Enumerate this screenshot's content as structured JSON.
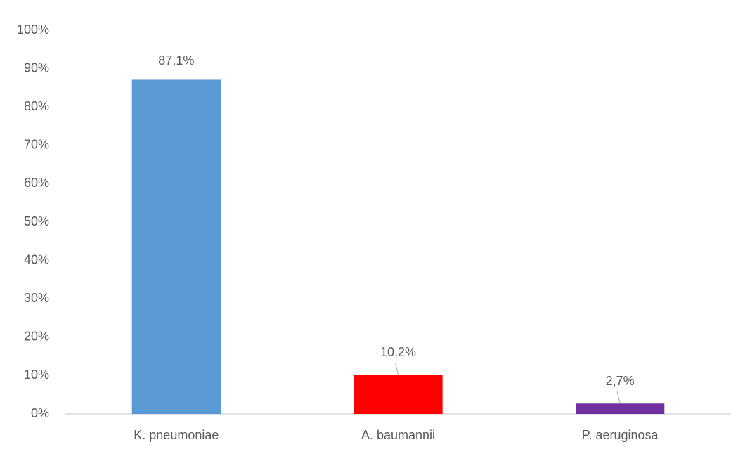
{
  "chart_data": {
    "type": "bar",
    "categories": [
      "K. pneumoniae",
      "A. baumannii",
      "P. aeruginosa"
    ],
    "values": [
      87.1,
      10.2,
      2.7
    ],
    "value_labels": [
      "87,1%",
      "10,2%",
      "2,7%"
    ],
    "colors": [
      "#5b9bd5",
      "#ff0000",
      "#7030a0"
    ],
    "ylim": [
      0,
      100
    ],
    "yticks": [
      {
        "value": 0,
        "label": "0%"
      },
      {
        "value": 10,
        "label": "10%"
      },
      {
        "value": 20,
        "label": "20%"
      },
      {
        "value": 30,
        "label": "30%"
      },
      {
        "value": 40,
        "label": "40%"
      },
      {
        "value": 50,
        "label": "50%"
      },
      {
        "value": 60,
        "label": "60%"
      },
      {
        "value": 70,
        "label": "70%"
      },
      {
        "value": 80,
        "label": "80%"
      },
      {
        "value": 90,
        "label": "90%"
      },
      {
        "value": 100,
        "label": "100%"
      }
    ],
    "grid": false
  }
}
